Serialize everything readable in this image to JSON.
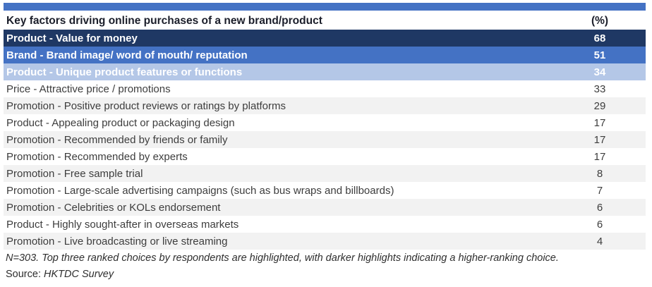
{
  "table": {
    "header": {
      "label": "Key factors driving online purchases of a new brand/product",
      "unit": "(%)"
    },
    "rows": [
      {
        "label": "Product - Value for money",
        "value": 68,
        "highlight": "dark"
      },
      {
        "label": "Brand - Brand image/ word of mouth/ reputation",
        "value": 51,
        "highlight": "medium"
      },
      {
        "label": "Product - Unique product features or functions",
        "value": 34,
        "highlight": "light"
      },
      {
        "label": "Price - Attractive price / promotions",
        "value": 33,
        "highlight": "none"
      },
      {
        "label": "Promotion - Positive product reviews or ratings by platforms",
        "value": 29,
        "highlight": "none"
      },
      {
        "label": "Product - Appealing product or packaging design",
        "value": 17,
        "highlight": "none"
      },
      {
        "label": "Promotion - Recommended by friends or family",
        "value": 17,
        "highlight": "none"
      },
      {
        "label": "Promotion - Recommended by experts",
        "value": 17,
        "highlight": "none"
      },
      {
        "label": "Promotion - Free sample trial",
        "value": 8,
        "highlight": "none"
      },
      {
        "label": "Promotion - Large-scale advertising campaigns (such as bus wraps and billboards)",
        "value": 7,
        "highlight": "none"
      },
      {
        "label": "Promotion - Celebrities or KOLs endorsement",
        "value": 6,
        "highlight": "none"
      },
      {
        "label": "Product - Highly sought-after in overseas markets",
        "value": 6,
        "highlight": "none"
      },
      {
        "label": "Promotion - Live broadcasting or live streaming",
        "value": 4,
        "highlight": "none"
      }
    ]
  },
  "footnotes": {
    "note": "N=303. Top three ranked choices by respondents are highlighted, with darker highlights indicating a higher-ranking choice.",
    "source_label": "Source:",
    "source_value": "HKTDC Survey"
  },
  "colors": {
    "accent_bar": "#4472C4",
    "highlight_dark": "#1F3864",
    "highlight_medium": "#4472C4",
    "highlight_light": "#B4C7E7",
    "zebra_gray": "#F2F2F2",
    "highlight_text": "#FFFFFF"
  },
  "chart_data": {
    "type": "table",
    "title": "Key factors driving online purchases of a new brand/product",
    "unit": "(%)",
    "categories": [
      "Product - Value for money",
      "Brand - Brand image/ word of mouth/ reputation",
      "Product - Unique product features or functions",
      "Price - Attractive price / promotions",
      "Promotion - Positive product reviews or ratings by platforms",
      "Product - Appealing product or packaging design",
      "Promotion - Recommended by friends or family",
      "Promotion - Recommended by experts",
      "Promotion - Free sample trial",
      "Promotion - Large-scale advertising campaigns (such as bus wraps and billboards)",
      "Promotion - Celebrities or KOLs endorsement",
      "Product - Highly sought-after in overseas markets",
      "Promotion - Live broadcasting or live streaming"
    ],
    "values": [
      68,
      51,
      34,
      33,
      29,
      17,
      17,
      17,
      8,
      7,
      6,
      6,
      4
    ],
    "notes": "N=303. Top three ranked choices by respondents are highlighted, with darker highlights indicating a higher-ranking choice.",
    "source": "HKTDC Survey",
    "highlighted_top3": [
      68,
      51,
      34
    ]
  }
}
